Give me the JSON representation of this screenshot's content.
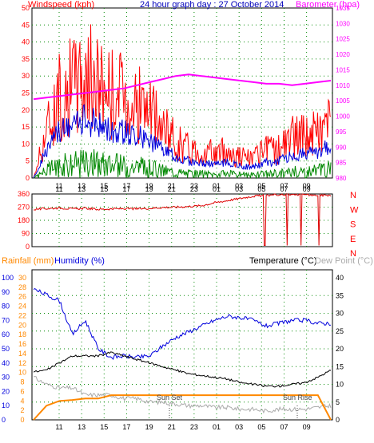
{
  "chart_data": [
    {
      "type": "line",
      "title": "24 hour graph day : 27 October 2014",
      "left_label": "Windspeed (kph)",
      "right_label": "Barometer (hpa)",
      "x_ticks": [
        "11",
        "13",
        "15",
        "17",
        "19",
        "21",
        "23",
        "01",
        "03",
        "05",
        "07",
        "09"
      ],
      "y_left_ticks": [
        0,
        5,
        10,
        15,
        20,
        25,
        30,
        35,
        40,
        45,
        50
      ],
      "y_left_range": [
        0,
        50
      ],
      "y_right_ticks": [
        980,
        985,
        990,
        995,
        1000,
        1005,
        1010,
        1015,
        1020,
        1025,
        1030,
        1035
      ],
      "y_right_range": [
        980,
        1035
      ],
      "grid": true,
      "colors": {
        "wind": "#ff0000",
        "avg": "#0000dd",
        "dir_ball": "#008800",
        "baro": "#ff00ff",
        "text_left": "#ff0000",
        "text_title": "#0000bb",
        "text_right": "#ff00ff"
      },
      "series": [
        {
          "name": "Windspeed (kph)",
          "values_hourly": [
            0,
            18,
            30,
            34,
            38,
            35,
            32,
            30,
            28,
            24,
            18,
            14,
            11,
            10,
            9,
            10,
            8,
            7,
            10,
            11,
            15,
            16,
            17,
            22
          ]
        },
        {
          "name": "Barometer (hpa)",
          "values_hourly": [
            1005.5,
            1006,
            1006.5,
            1007,
            1007.5,
            1008,
            1008.5,
            1009,
            1010,
            1011,
            1012,
            1013,
            1013.5,
            1013,
            1012.5,
            1012,
            1011.5,
            1011,
            1010.5,
            1010.5,
            1010,
            1010.5,
            1011,
            1011.5
          ]
        }
      ]
    },
    {
      "type": "line",
      "title": "",
      "y_ticks": [
        0,
        90,
        180,
        270,
        360
      ],
      "y_range": [
        0,
        360
      ],
      "right_letters": [
        "N",
        "W",
        "S",
        "E",
        "N"
      ],
      "x_ticks": [
        "11",
        "13",
        "15",
        "17",
        "19",
        "21",
        "23",
        "01",
        "03",
        "05",
        "07",
        "09"
      ],
      "grid": true,
      "colors": {
        "dir": "#dd0000",
        "letters": "#ff0000"
      },
      "series": [
        {
          "name": "Wind Direction",
          "values_hourly": [
            255,
            260,
            265,
            258,
            262,
            255,
            258,
            260,
            258,
            262,
            268,
            270,
            275,
            280,
            300,
            315,
            330,
            345,
            350,
            355,
            358,
            355,
            350,
            352
          ]
        }
      ]
    },
    {
      "type": "line",
      "left_label_rain": "Rainfall (mm)",
      "left_label_hum": "Humidity (%)",
      "right_label_temp": "Temperature (°C)",
      "right_label_dew": "Dew Point (°C)",
      "y_rain_ticks": [
        0,
        2,
        4,
        6,
        8,
        10,
        12,
        14,
        16,
        18,
        20,
        22,
        24,
        26,
        28,
        30
      ],
      "y_hum_ticks": [
        0,
        10,
        20,
        30,
        40,
        50,
        60,
        70,
        80,
        90,
        100
      ],
      "y_temp_ticks": [
        0,
        5,
        10,
        15,
        20,
        25,
        30,
        35,
        40
      ],
      "y_temp_range": [
        0,
        40
      ],
      "x_ticks": [
        "11",
        "13",
        "15",
        "17",
        "19",
        "21",
        "23",
        "01",
        "03",
        "05",
        "07",
        "09"
      ],
      "annotations": [
        "Sun Set",
        "Sun Rise"
      ],
      "grid": true,
      "colors": {
        "rain": "#ff8800",
        "hum": "#0000dd",
        "temp": "#000000",
        "dew": "#aaaaaa",
        "temp_label": "#000000",
        "dew_label": "#aaaaaa"
      },
      "series": [
        {
          "name": "Humidity (%)",
          "values_hourly": [
            92,
            88,
            84,
            60,
            70,
            50,
            44,
            45,
            44,
            45,
            52,
            58,
            62,
            66,
            70,
            73,
            72,
            70,
            66,
            68,
            70,
            70,
            68,
            68
          ]
        },
        {
          "name": "Temperature (°C)",
          "values_hourly": [
            13.5,
            14,
            16,
            18,
            18,
            18,
            19,
            18,
            17,
            16,
            15,
            14,
            13,
            12.5,
            12,
            11.5,
            10.5,
            10,
            9.5,
            9.5,
            10,
            10.5,
            12,
            14
          ]
        },
        {
          "name": "Dew Point (°C)",
          "values_hourly": [
            12,
            10,
            9,
            9,
            7,
            7,
            7,
            6,
            6,
            5,
            5,
            4.5,
            4,
            4,
            3.5,
            3.5,
            3,
            3,
            2.5,
            3,
            3,
            3,
            3.5,
            4
          ]
        },
        {
          "name": "Rainfall (mm)",
          "values_hourly": [
            0,
            3,
            4,
            4.2,
            4.5,
            4.5,
            5.2,
            5.2,
            5.2,
            5.2,
            5.2,
            5.2,
            5.2,
            5.2,
            5.2,
            5.2,
            5.2,
            5.2,
            5.2,
            5.2,
            5.2,
            5.2,
            5.2,
            0
          ]
        }
      ]
    }
  ]
}
